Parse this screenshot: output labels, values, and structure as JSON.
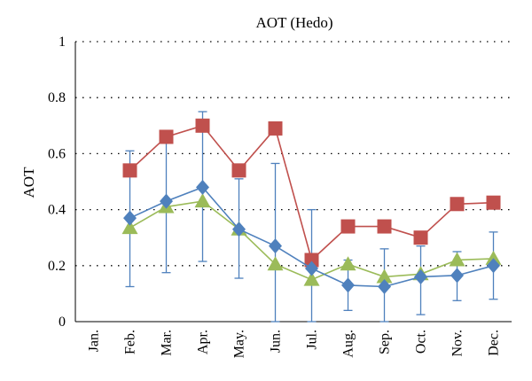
{
  "chart_data": {
    "type": "line",
    "title": "AOT (Hedo)",
    "xlabel": "",
    "ylabel": "AOT",
    "ylim": [
      0,
      1
    ],
    "yticks": [
      "0",
      "0.2",
      "0.4",
      "0.6",
      "0.8",
      "1"
    ],
    "ytick_values": [
      0,
      0.2,
      0.4,
      0.6,
      0.8,
      1
    ],
    "categories": [
      "Jan.",
      "Feb.",
      "Mar.",
      "Apr.",
      "May.",
      "Jun.",
      "Jul.",
      "Aug.",
      "Sep.",
      "Oct.",
      "Nov.",
      "Dec."
    ],
    "grid": "horizontal dotted",
    "series": [
      {
        "marker": "square",
        "color": "#c0504d",
        "values": [
          null,
          0.54,
          0.66,
          0.7,
          0.54,
          0.69,
          0.22,
          0.34,
          0.34,
          0.3,
          0.42,
          0.425
        ]
      },
      {
        "marker": "diamond",
        "color": "#4f81bd",
        "values": [
          null,
          0.37,
          0.43,
          0.48,
          0.33,
          0.27,
          0.19,
          0.13,
          0.125,
          0.16,
          0.165,
          0.2
        ],
        "error_low": [
          null,
          0.125,
          0.175,
          0.215,
          0.155,
          0.0,
          0.0,
          0.04,
          0.0,
          0.025,
          0.075,
          0.08
        ],
        "error_high": [
          null,
          0.61,
          0.66,
          0.75,
          0.51,
          0.565,
          0.4,
          0.22,
          0.26,
          0.27,
          0.25,
          0.32
        ]
      },
      {
        "marker": "triangle",
        "color": "#9bbb59",
        "values": [
          null,
          0.335,
          0.41,
          0.43,
          0.33,
          0.205,
          0.15,
          0.205,
          0.16,
          0.17,
          0.22,
          0.225
        ]
      }
    ]
  }
}
